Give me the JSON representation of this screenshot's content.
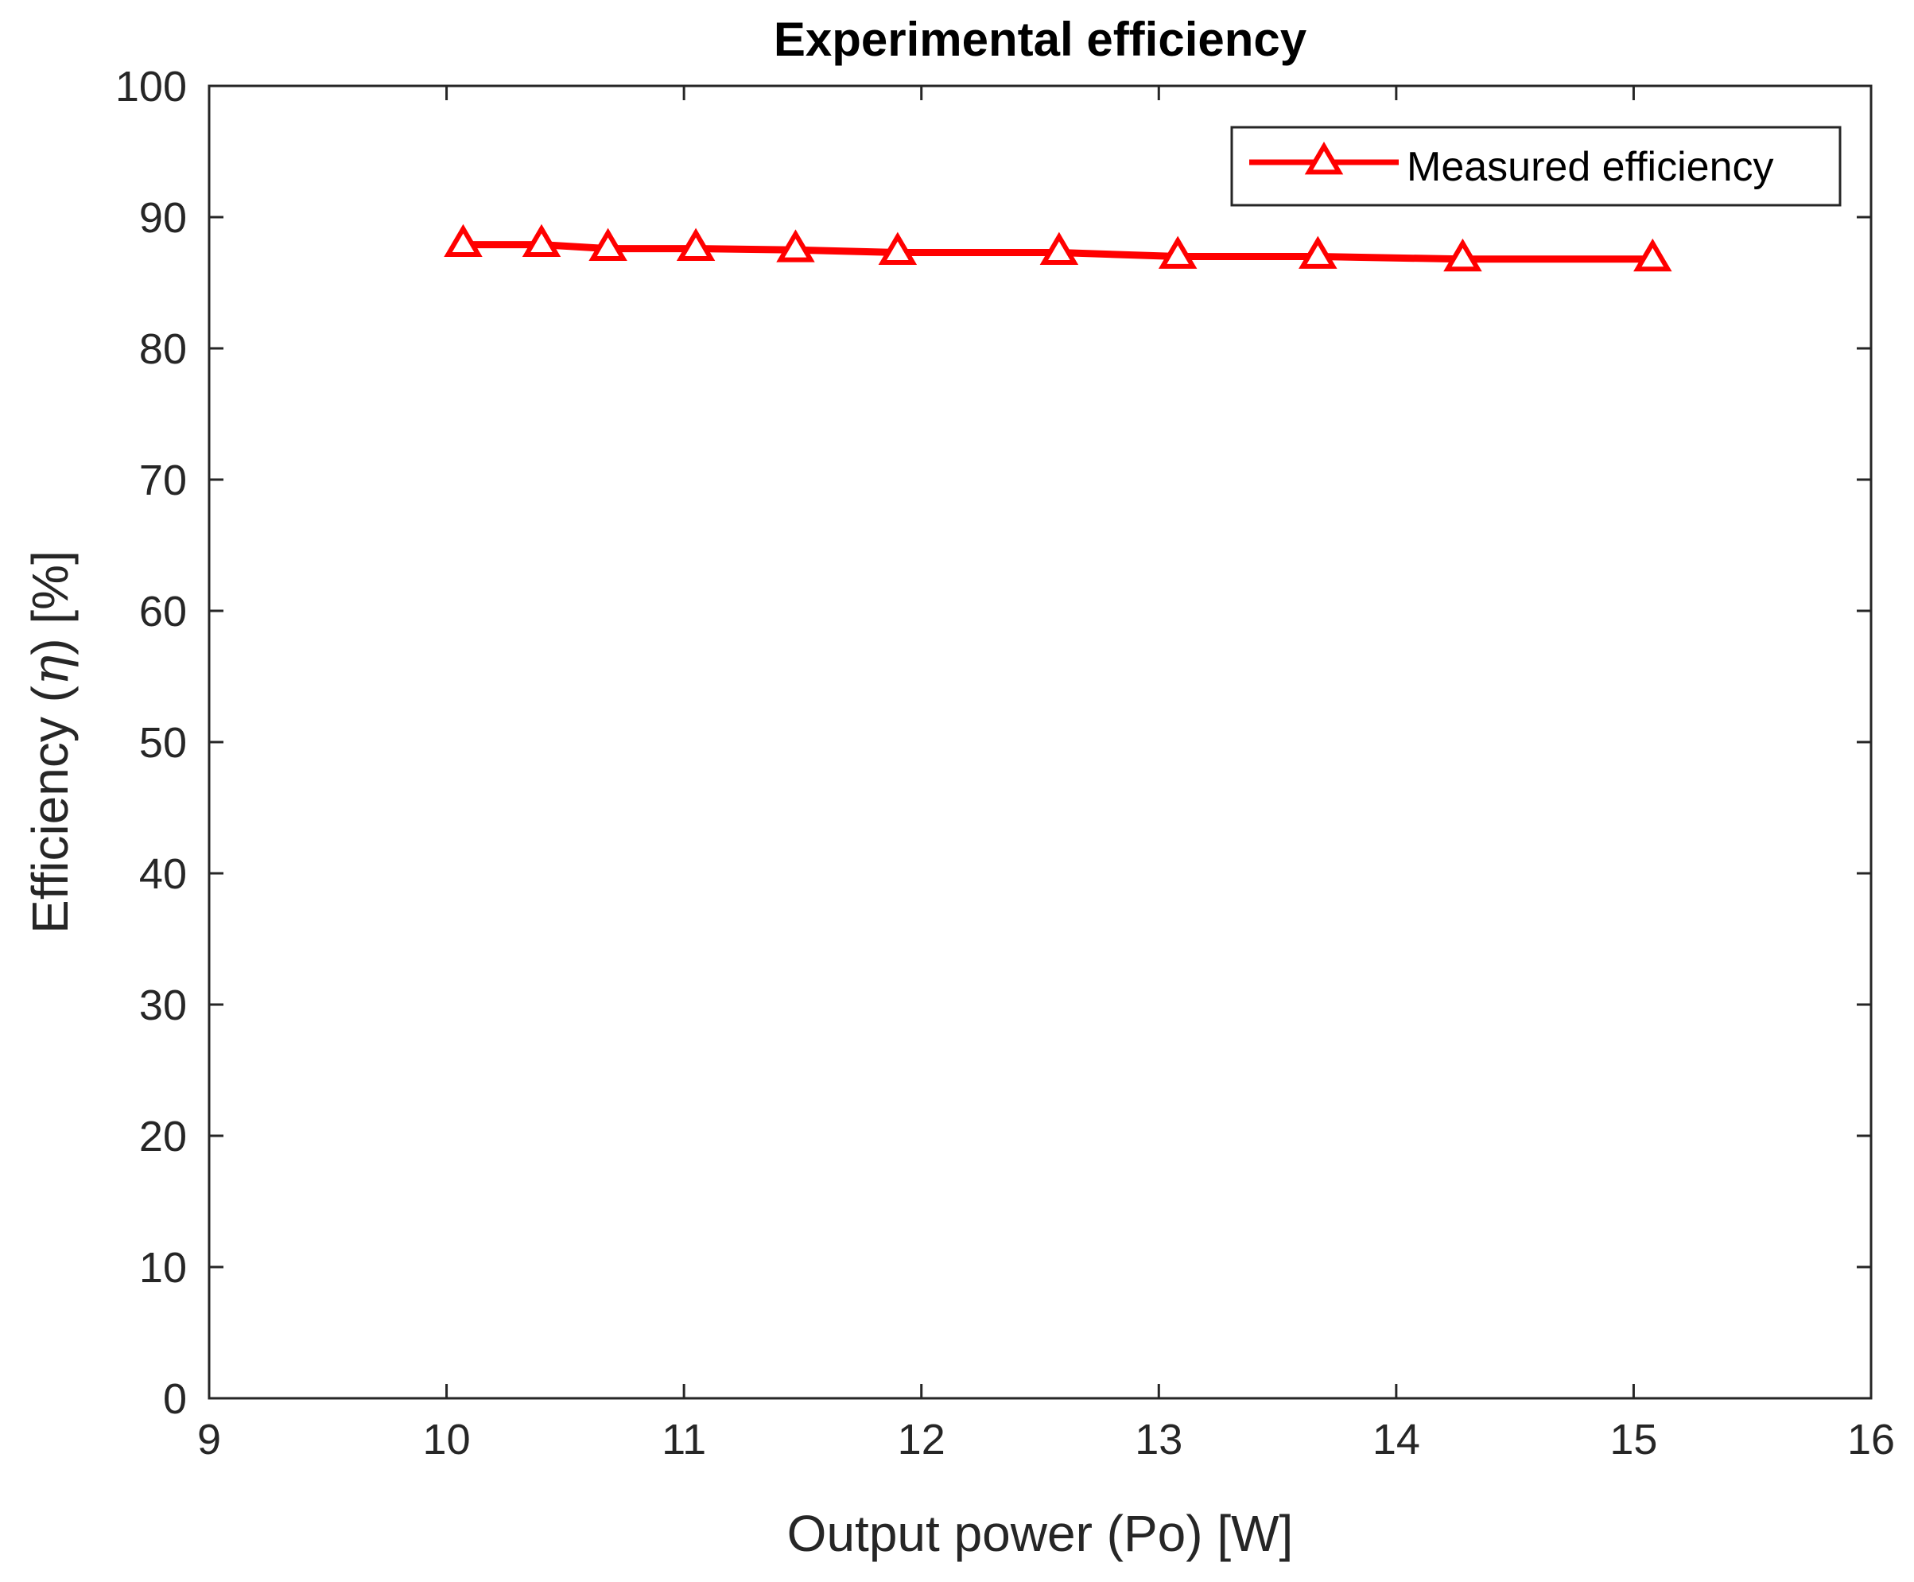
{
  "chart_data": {
    "type": "line",
    "title": "Experimental efficiency",
    "xlabel": "Output power (Po) [W]",
    "ylabel_main": "Efficiency (",
    "ylabel_symbol": "η",
    "ylabel_end": ") [%]",
    "xlim": [
      9,
      16
    ],
    "ylim": [
      0,
      100
    ],
    "xticks": [
      "9",
      "10",
      "11",
      "12",
      "13",
      "14",
      "15",
      "16"
    ],
    "yticks": [
      "0",
      "10",
      "20",
      "30",
      "40",
      "50",
      "60",
      "70",
      "80",
      "90",
      "100"
    ],
    "legend_position": "top-right",
    "series": [
      {
        "name": "Measured efficiency",
        "color": "#ff0000",
        "marker": "triangle",
        "x": [
          10.07,
          10.4,
          10.68,
          11.05,
          11.47,
          11.9,
          12.58,
          13.08,
          13.67,
          14.28,
          15.08
        ],
        "y": [
          87.9,
          87.9,
          87.6,
          87.6,
          87.5,
          87.3,
          87.3,
          87.0,
          87.0,
          86.8,
          86.8
        ]
      }
    ]
  }
}
